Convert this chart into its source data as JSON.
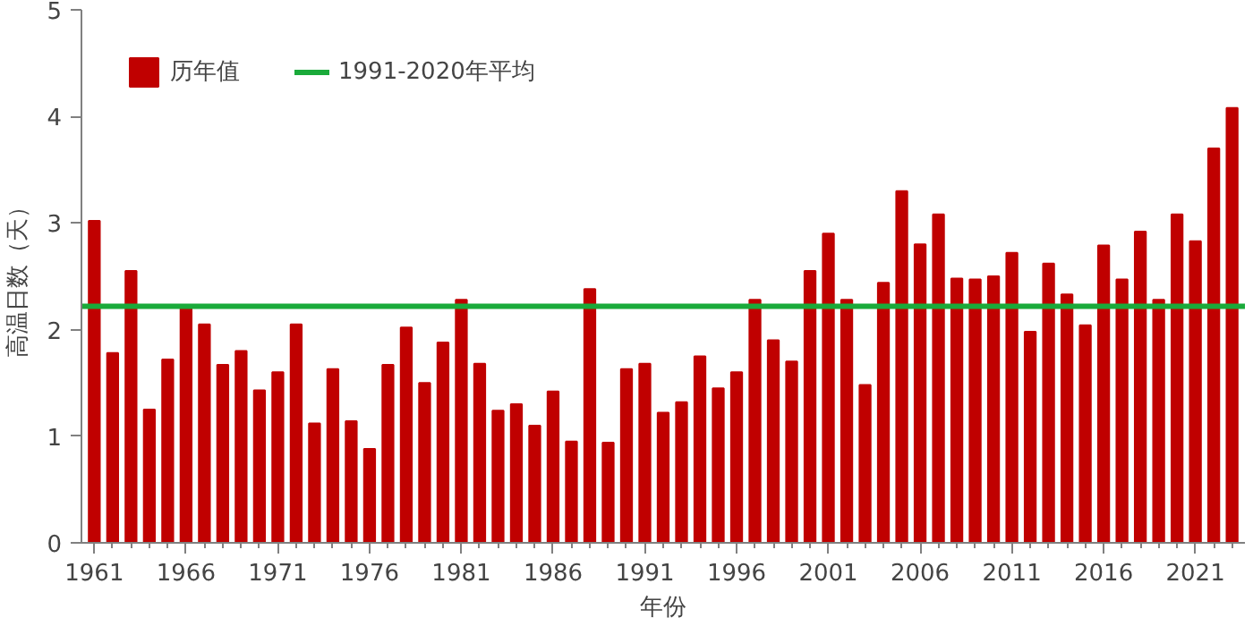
{
  "chart_data": {
    "type": "bar",
    "xlabel": "年份",
    "ylabel": "高温日数（天）",
    "x": [
      1961,
      1962,
      1963,
      1964,
      1965,
      1966,
      1967,
      1968,
      1969,
      1970,
      1971,
      1972,
      1973,
      1974,
      1975,
      1976,
      1977,
      1978,
      1979,
      1980,
      1981,
      1982,
      1983,
      1984,
      1985,
      1986,
      1987,
      1988,
      1989,
      1990,
      1991,
      1992,
      1993,
      1994,
      1995,
      1996,
      1997,
      1998,
      1999,
      2000,
      2001,
      2002,
      2003,
      2004,
      2005,
      2006,
      2007,
      2008,
      2009,
      2010,
      2011,
      2012,
      2013,
      2014,
      2015,
      2016,
      2017,
      2018,
      2019,
      2020,
      2021,
      2022,
      2023
    ],
    "series": [
      {
        "name": "历年值",
        "color": "#c00000",
        "values": [
          3.02,
          1.78,
          2.55,
          1.25,
          1.72,
          2.2,
          2.05,
          1.67,
          1.8,
          1.43,
          1.6,
          2.05,
          1.12,
          1.63,
          1.14,
          0.88,
          1.67,
          2.02,
          1.5,
          1.88,
          2.28,
          1.68,
          1.24,
          1.3,
          1.1,
          1.42,
          0.95,
          2.38,
          0.94,
          1.63,
          1.68,
          1.22,
          1.32,
          1.75,
          1.45,
          1.6,
          2.28,
          1.9,
          1.7,
          2.55,
          2.9,
          2.28,
          1.48,
          2.44,
          3.3,
          2.8,
          3.08,
          2.48,
          2.47,
          2.5,
          2.72,
          1.98,
          2.62,
          2.33,
          2.04,
          2.79,
          2.47,
          2.92,
          2.28,
          3.08,
          2.83,
          3.7,
          4.08
        ]
      }
    ],
    "ref_lines": [
      {
        "axis": "y",
        "value": 2.22,
        "label": "1991-2020年平均",
        "color": "#1aaa3a"
      }
    ],
    "xlim": [
      1960.3,
      2023.7
    ],
    "xticks": [
      1961,
      1966,
      1971,
      1976,
      1981,
      1986,
      1991,
      1996,
      2001,
      2006,
      2011,
      2016,
      2021
    ],
    "ylim": [
      0,
      5
    ],
    "yticks": [
      0,
      1,
      2,
      3,
      4,
      5
    ],
    "grid": false,
    "legend": "top left"
  }
}
